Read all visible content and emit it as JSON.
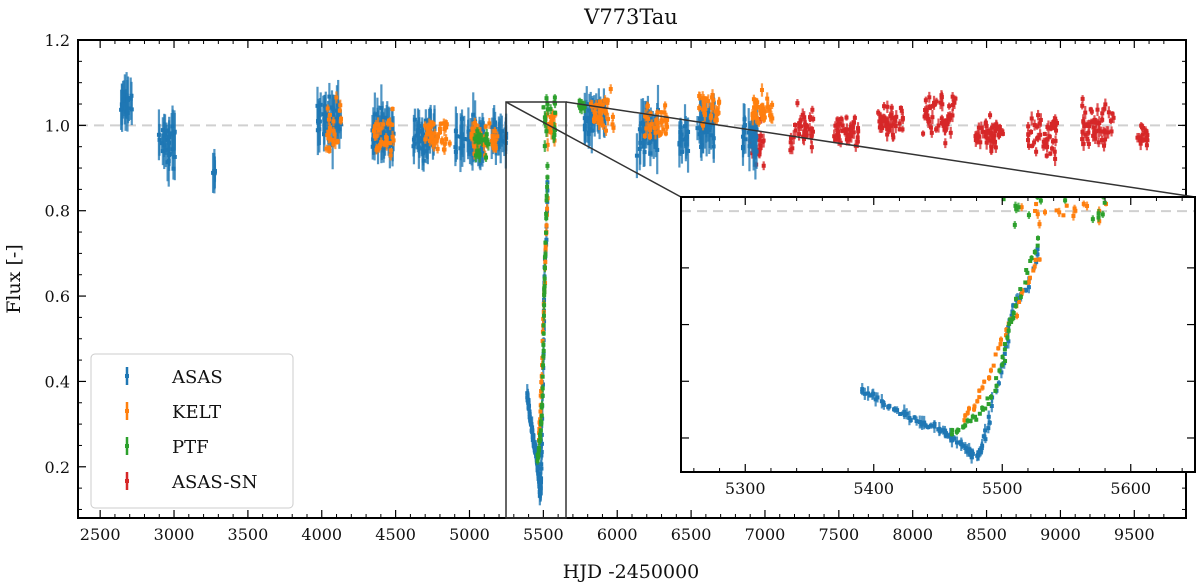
{
  "chart_data": {
    "type": "scatter",
    "title": "V773Tau",
    "xlabel": "HJD -2450000",
    "ylabel": "Flux [-]",
    "xlim": [
      2350,
      9850
    ],
    "ylim": [
      0.08,
      1.2
    ],
    "xticks": [
      2500,
      3000,
      3500,
      4000,
      4500,
      5000,
      5500,
      6000,
      6500,
      7000,
      7500,
      8000,
      8500,
      9000,
      9500
    ],
    "yticks": [
      0.2,
      0.4,
      0.6,
      0.8,
      1.0,
      1.2
    ],
    "xtick_labels": [
      "2500",
      "3000",
      "3500",
      "4000",
      "4500",
      "5000",
      "5500",
      "6000",
      "6500",
      "7000",
      "7500",
      "8000",
      "8500",
      "9000",
      "9500"
    ],
    "ytick_labels": [
      "0.2",
      "0.4",
      "0.6",
      "0.8",
      "1.0",
      "1.2"
    ],
    "reference_line": 1.0,
    "legend_position": "lower-left",
    "series": [
      {
        "name": "ASAS",
        "color": "#1f77b4",
        "clusters": [
          [
            2680,
            40,
            1.06,
            0.03
          ],
          [
            2950,
            60,
            0.96,
            0.05
          ],
          [
            3270,
            8,
            0.89,
            0.01
          ],
          [
            4050,
            80,
            1.02,
            0.05
          ],
          [
            4400,
            90,
            0.99,
            0.04
          ],
          [
            4700,
            80,
            0.97,
            0.04
          ],
          [
            5000,
            100,
            0.97,
            0.04
          ],
          [
            5200,
            50,
            0.98,
            0.03
          ],
          [
            5850,
            70,
            1.02,
            0.04
          ],
          [
            6200,
            80,
            0.98,
            0.04
          ],
          [
            6450,
            30,
            0.97,
            0.03
          ],
          [
            6600,
            60,
            1.0,
            0.04
          ],
          [
            6900,
            50,
            0.97,
            0.04
          ]
        ],
        "dip": [
          [
            5390,
            0.37
          ],
          [
            5400,
            0.35
          ],
          [
            5410,
            0.31
          ],
          [
            5420,
            0.29
          ],
          [
            5430,
            0.27
          ],
          [
            5440,
            0.25
          ],
          [
            5450,
            0.24
          ],
          [
            5455,
            0.22
          ],
          [
            5460,
            0.2
          ],
          [
            5470,
            0.17
          ],
          [
            5475,
            0.15
          ],
          [
            5480,
            0.13
          ],
          [
            5485,
            0.17
          ],
          [
            5490,
            0.28
          ],
          [
            5500,
            0.45
          ],
          [
            5505,
            0.58
          ],
          [
            5510,
            0.68
          ],
          [
            5520,
            0.74
          ],
          [
            5530,
            0.9
          ]
        ]
      },
      {
        "name": "KELT",
        "color": "#ff7f0e",
        "clusters": [
          [
            4080,
            60,
            1.0,
            0.05
          ],
          [
            4420,
            70,
            0.98,
            0.04
          ],
          [
            4780,
            90,
            0.98,
            0.03
          ],
          [
            5100,
            90,
            0.97,
            0.03
          ],
          [
            5550,
            40,
            1.0,
            0.04
          ],
          [
            5900,
            80,
            1.02,
            0.04
          ],
          [
            6260,
            80,
            1.0,
            0.04
          ],
          [
            6620,
            70,
            1.04,
            0.03
          ],
          [
            6980,
            70,
            1.04,
            0.03
          ]
        ],
        "dip": [
          [
            5470,
            0.26
          ],
          [
            5480,
            0.33
          ],
          [
            5490,
            0.42
          ],
          [
            5500,
            0.55
          ],
          [
            5510,
            0.64
          ],
          [
            5520,
            0.76
          ],
          [
            5530,
            0.85
          ]
        ]
      },
      {
        "name": "PTF",
        "color": "#2ca02c",
        "clusters": [
          [
            5080,
            50,
            0.96,
            0.04
          ],
          [
            5540,
            40,
            1.02,
            0.05
          ],
          [
            5760,
            20,
            1.05,
            0.02
          ]
        ],
        "dip": [
          [
            5460,
            0.22
          ],
          [
            5470,
            0.24
          ],
          [
            5480,
            0.28
          ],
          [
            5490,
            0.33
          ],
          [
            5500,
            0.45
          ],
          [
            5505,
            0.58
          ],
          [
            5510,
            0.66
          ],
          [
            5520,
            0.8
          ],
          [
            5530,
            0.92
          ]
        ]
      },
      {
        "name": "ASAS-SN",
        "color": "#d62728",
        "clusters": [
          [
            6950,
            50,
            0.97,
            0.06
          ],
          [
            7250,
            80,
            0.99,
            0.04
          ],
          [
            7550,
            90,
            0.99,
            0.03
          ],
          [
            7850,
            90,
            1.01,
            0.03
          ],
          [
            8180,
            110,
            1.02,
            0.04
          ],
          [
            8520,
            100,
            0.98,
            0.03
          ],
          [
            8880,
            100,
            0.98,
            0.04
          ],
          [
            9250,
            110,
            1.0,
            0.04
          ],
          [
            9560,
            40,
            0.98,
            0.03
          ]
        ],
        "dip": []
      }
    ],
    "inset": {
      "xlim": [
        5250,
        5650
      ],
      "ylim": [
        0.08,
        1.05
      ],
      "xticks": [
        5300,
        5400,
        5500,
        5600
      ],
      "xtick_labels": [
        "5300",
        "5400",
        "5500",
        "5600"
      ],
      "reference_line": 1.0
    }
  }
}
